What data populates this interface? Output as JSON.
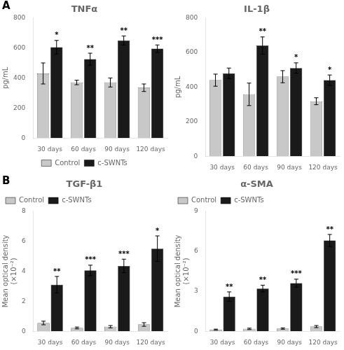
{
  "chart_data": [
    {
      "type": "bar",
      "title": "TNFα",
      "ylabel": "pg/mL",
      "categories": [
        "30 days",
        "60 days",
        "90 days",
        "120 days"
      ],
      "series": [
        {
          "name": "Control",
          "color": "#c8c8c8",
          "values": [
            430,
            370,
            370,
            335
          ],
          "errors": [
            70,
            15,
            30,
            25
          ]
        },
        {
          "name": "c-SWNTs",
          "color": "#1a1a1a",
          "values": [
            605,
            525,
            650,
            595
          ],
          "errors": [
            45,
            40,
            30,
            25
          ],
          "significance": [
            "*",
            "**",
            "**",
            "***"
          ]
        }
      ],
      "ylim": [
        0,
        800
      ],
      "yticks": [
        0,
        200,
        400,
        600,
        800
      ],
      "grid": false,
      "legend": "bottom",
      "annotations": [
        "A"
      ]
    },
    {
      "type": "bar",
      "title": "IL-1β",
      "ylabel": "pg/mL",
      "categories": [
        "30 days",
        "60 days",
        "90 days",
        "120 days"
      ],
      "series": [
        {
          "name": "Control",
          "color": "#c8c8c8",
          "values": [
            440,
            358,
            460,
            318
          ],
          "errors": [
            35,
            65,
            35,
            20
          ]
        },
        {
          "name": "c-SWNTs",
          "color": "#1a1a1a",
          "values": [
            480,
            640,
            510,
            440
          ],
          "errors": [
            30,
            50,
            30,
            30
          ],
          "significance": [
            null,
            "**",
            "*",
            "*"
          ]
        }
      ],
      "ylim": [
        0,
        800
      ],
      "yticks": [
        0,
        200,
        400,
        600,
        800
      ],
      "grid": false
    },
    {
      "type": "bar",
      "title": "TGF-β1",
      "ylabel": "Mean optical density\n(×10⁻²)",
      "categories": [
        "30 days",
        "60 days",
        "90 days",
        "120 days"
      ],
      "series": [
        {
          "name": "Control",
          "color": "#c8c8c8",
          "values": [
            0.55,
            0.22,
            0.3,
            0.45
          ],
          "errors": [
            0.12,
            0.06,
            0.08,
            0.12
          ]
        },
        {
          "name": "c-SWNTs",
          "color": "#1a1a1a",
          "values": [
            3.1,
            4.05,
            4.35,
            5.5
          ],
          "errors": [
            0.55,
            0.35,
            0.45,
            0.85
          ],
          "significance": [
            "**",
            "***",
            "***",
            "*"
          ]
        }
      ],
      "ylim": [
        0,
        8
      ],
      "yticks": [
        0,
        2,
        4,
        6,
        8
      ],
      "grid": false,
      "legend": "upper left",
      "annotations": [
        "B"
      ]
    },
    {
      "type": "bar",
      "title": "α-SMA",
      "ylabel": "Mean optical density\n(×10⁻²)",
      "categories": [
        "30 days",
        "60 days",
        "90 days",
        "120 days"
      ],
      "series": [
        {
          "name": "Control",
          "color": "#c8c8c8",
          "values": [
            0.12,
            0.18,
            0.2,
            0.35
          ],
          "errors": [
            0.04,
            0.05,
            0.05,
            0.08
          ]
        },
        {
          "name": "c-SWNTs",
          "color": "#1a1a1a",
          "values": [
            2.6,
            3.2,
            3.6,
            6.8
          ],
          "errors": [
            0.35,
            0.25,
            0.3,
            0.45
          ],
          "significance": [
            "**",
            "**",
            "***",
            "**"
          ]
        }
      ],
      "ylim": [
        0,
        9
      ],
      "yticks": [
        0,
        3,
        6,
        9
      ],
      "grid": false,
      "legend": "upper left"
    }
  ]
}
